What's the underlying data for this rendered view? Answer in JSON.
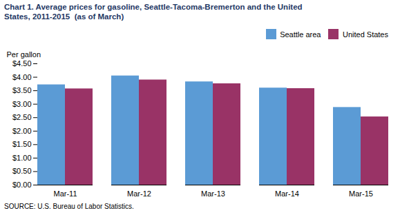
{
  "chart_data": {
    "type": "bar",
    "title": "Chart 1. Average prices for gasoline, Seattle-Tacoma-Bremerton and the United\nStates, 2011-2015  (as of March)",
    "y_label": "Per gallon",
    "source": "SOURCE: U.S. Bureau of Labor Statistics.",
    "categories": [
      "Mar-11",
      "Mar-12",
      "Mar-13",
      "Mar-14",
      "Mar-15"
    ],
    "series": [
      {
        "name": "Seattle area",
        "color": "#5B9BD5",
        "values": [
          3.72,
          4.05,
          3.83,
          3.6,
          2.88
        ]
      },
      {
        "name": "United States",
        "color": "#993366",
        "values": [
          3.57,
          3.9,
          3.76,
          3.58,
          2.53
        ]
      }
    ],
    "ylim": [
      0,
      4.5
    ],
    "yticks": [
      {
        "value": 0.0,
        "label": "$0.00"
      },
      {
        "value": 0.5,
        "label": "$0.50"
      },
      {
        "value": 1.0,
        "label": "$1.00"
      },
      {
        "value": 1.5,
        "label": "$1.50"
      },
      {
        "value": 2.0,
        "label": "$2.00"
      },
      {
        "value": 2.5,
        "label": "$2.50"
      },
      {
        "value": 3.0,
        "label": "$3.00"
      },
      {
        "value": 3.5,
        "label": "$3.50"
      },
      {
        "value": 4.0,
        "label": "$4.00"
      },
      {
        "value": 4.5,
        "label": "$4.50"
      }
    ],
    "grid": false,
    "legend": "upper right"
  }
}
